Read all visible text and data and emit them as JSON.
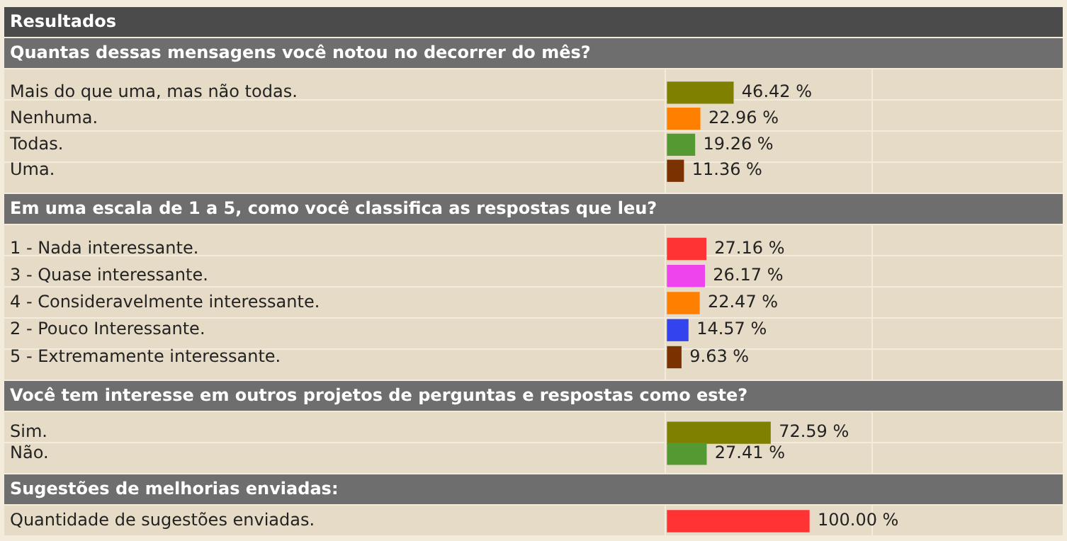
{
  "chart_data": [
    {
      "type": "bar",
      "orientation": "horizontal",
      "title": "Resultados",
      "subtitle": "Quantas dessas mensagens você notou no decorrer do mês?",
      "categories": [
        "Mais do que uma, mas não todas.",
        "Nenhuma.",
        "Todas.",
        "Uma."
      ],
      "values": [
        46.42,
        22.96,
        19.26,
        11.36
      ],
      "colors": [
        "#808000",
        "#ff8000",
        "#559933",
        "#7a3300"
      ],
      "value_labels": [
        "46.42 %",
        "22.96 %",
        "19.26 %",
        "11.36 %"
      ]
    },
    {
      "type": "bar",
      "orientation": "horizontal",
      "title": "Em uma escala de 1 a 5, como você classifica as respostas que leu?",
      "categories": [
        "1 - Nada interessante.",
        "3 - Quase interessante.",
        "4 - Consideravelmente interessante.",
        "2 - Pouco Interessante.",
        "5 - Extremamente interessante."
      ],
      "values": [
        27.16,
        26.17,
        22.47,
        14.57,
        9.63
      ],
      "colors": [
        "#ff3333",
        "#ee44ee",
        "#ff8000",
        "#3344ee",
        "#7a3300"
      ],
      "value_labels": [
        "27.16 %",
        "26.17 %",
        "22.47 %",
        "14.57 %",
        "9.63 %"
      ]
    },
    {
      "type": "bar",
      "orientation": "horizontal",
      "title": "Você tem interesse em outros projetos de perguntas e respostas como este?",
      "categories": [
        "Sim.",
        "Não."
      ],
      "values": [
        72.59,
        27.41
      ],
      "colors": [
        "#808000",
        "#559933"
      ],
      "value_labels": [
        "72.59 %",
        "27.41 %"
      ]
    },
    {
      "type": "bar",
      "orientation": "horizontal",
      "title": "Sugestões de melhorias enviadas:",
      "categories": [
        "Quantidade de sugestões enviadas."
      ],
      "values": [
        100.0
      ],
      "colors": [
        "#ff3333"
      ],
      "value_labels": [
        "100.00 %"
      ]
    }
  ]
}
